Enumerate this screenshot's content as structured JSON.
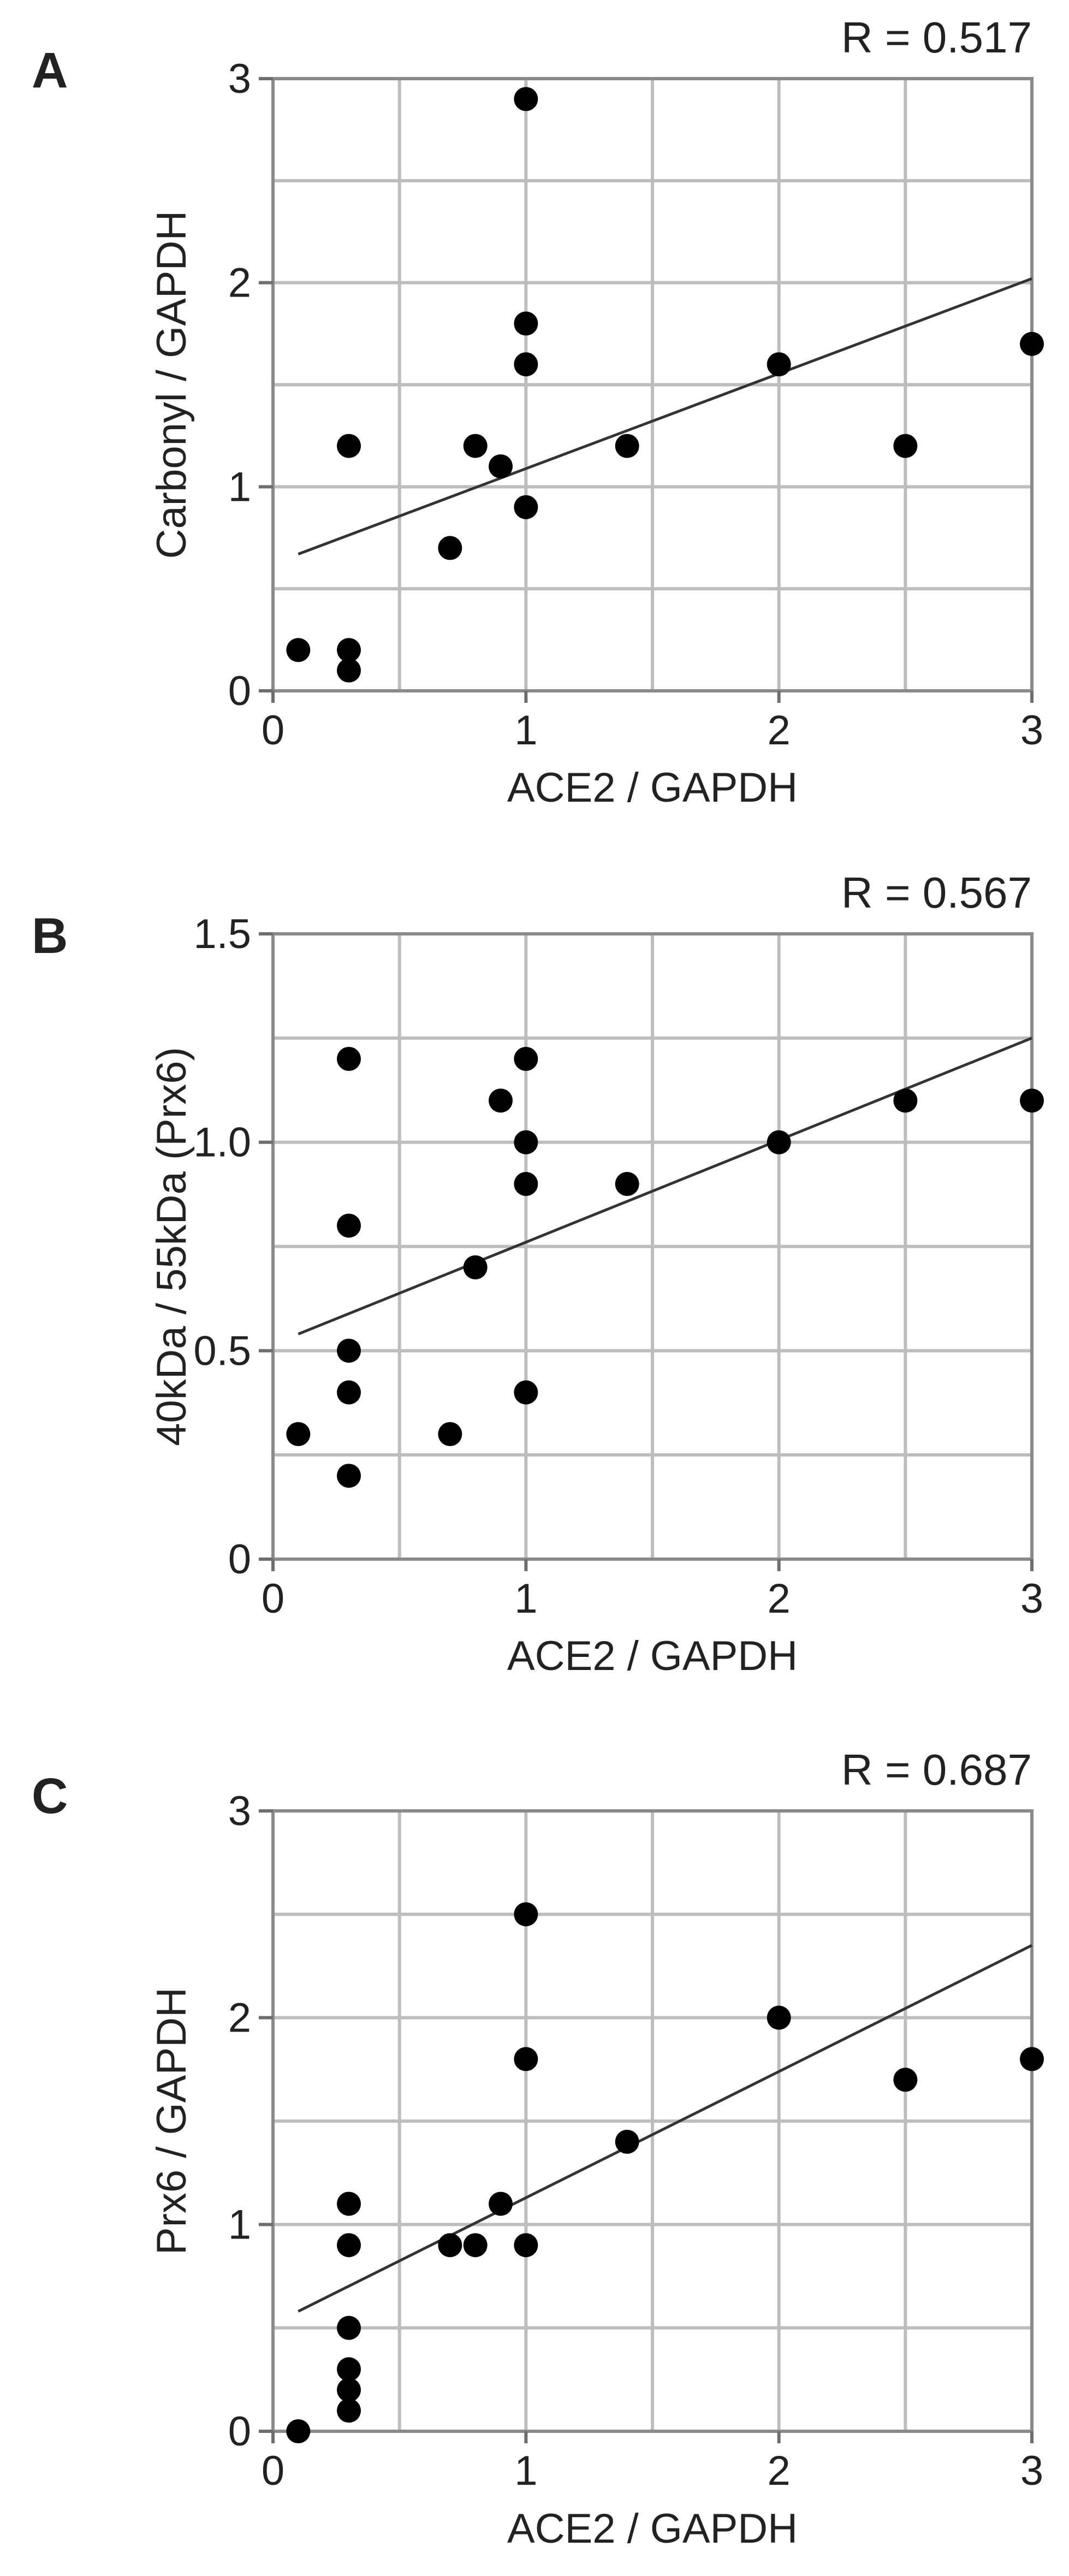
{
  "chart_data": [
    {
      "type": "scatter",
      "panel": "A",
      "annotation": "R = 0.517",
      "xlabel": "ACE2 / GAPDH",
      "ylabel": "Carbonyl / GAPDH",
      "xlim": [
        0,
        3
      ],
      "ylim": [
        0,
        3
      ],
      "x_ticks": [
        0,
        1,
        2,
        3
      ],
      "x_tick_labels": [
        "0",
        "1",
        "2",
        "3"
      ],
      "y_ticks": [
        0,
        1,
        2,
        3
      ],
      "y_tick_labels": [
        "0",
        "1",
        "2",
        "3"
      ],
      "grid": true,
      "points": [
        [
          0.1,
          0.2
        ],
        [
          0.3,
          0.2
        ],
        [
          0.3,
          0.1
        ],
        [
          0.3,
          1.2
        ],
        [
          0.7,
          0.7
        ],
        [
          0.8,
          1.2
        ],
        [
          0.9,
          1.1
        ],
        [
          1.0,
          2.9
        ],
        [
          1.0,
          1.8
        ],
        [
          1.0,
          1.6
        ],
        [
          1.0,
          0.9
        ],
        [
          1.4,
          1.2
        ],
        [
          2.0,
          1.6
        ],
        [
          2.5,
          1.2
        ],
        [
          3.0,
          1.7
        ]
      ],
      "fit": {
        "x": [
          0.1,
          3.0
        ],
        "y": [
          0.67,
          2.02
        ]
      }
    },
    {
      "type": "scatter",
      "panel": "B",
      "annotation": "R = 0.567",
      "xlabel": "ACE2 / GAPDH",
      "ylabel": "40kDa  / 55kDa (Prx6)",
      "xlim": [
        0,
        3
      ],
      "ylim": [
        0,
        1.5
      ],
      "x_ticks": [
        0,
        1,
        2,
        3
      ],
      "x_tick_labels": [
        "0",
        "1",
        "2",
        "3"
      ],
      "y_ticks": [
        0,
        0.5,
        1.0,
        1.5
      ],
      "y_tick_labels": [
        "0",
        "0.5",
        "1.0",
        "1.5"
      ],
      "grid": true,
      "points": [
        [
          0.1,
          0.3
        ],
        [
          0.3,
          1.2
        ],
        [
          0.3,
          0.8
        ],
        [
          0.3,
          0.5
        ],
        [
          0.3,
          0.4
        ],
        [
          0.3,
          0.2
        ],
        [
          0.7,
          0.3
        ],
        [
          0.8,
          0.7
        ],
        [
          0.9,
          1.1
        ],
        [
          1.0,
          1.2
        ],
        [
          1.0,
          1.0
        ],
        [
          1.0,
          0.9
        ],
        [
          1.0,
          0.4
        ],
        [
          1.4,
          0.9
        ],
        [
          2.0,
          1.0
        ],
        [
          2.5,
          1.1
        ],
        [
          3.0,
          1.1
        ]
      ],
      "fit": {
        "x": [
          0.1,
          3.0
        ],
        "y": [
          0.54,
          1.25
        ]
      }
    },
    {
      "type": "scatter",
      "panel": "C",
      "annotation": "R = 0.687",
      "xlabel": "ACE2 / GAPDH",
      "ylabel": "Prx6 / GAPDH",
      "xlim": [
        0,
        3
      ],
      "ylim": [
        0,
        3
      ],
      "x_ticks": [
        0,
        1,
        2,
        3
      ],
      "x_tick_labels": [
        "0",
        "1",
        "2",
        "3"
      ],
      "y_ticks": [
        0,
        1,
        2,
        3
      ],
      "y_tick_labels": [
        "0",
        "1",
        "2",
        "3"
      ],
      "grid": true,
      "points": [
        [
          0.1,
          0.0
        ],
        [
          0.3,
          1.1
        ],
        [
          0.3,
          0.9
        ],
        [
          0.3,
          0.5
        ],
        [
          0.3,
          0.3
        ],
        [
          0.3,
          0.2
        ],
        [
          0.3,
          0.1
        ],
        [
          0.7,
          0.9
        ],
        [
          0.8,
          0.9
        ],
        [
          0.9,
          1.1
        ],
        [
          1.0,
          2.5
        ],
        [
          1.0,
          1.8
        ],
        [
          1.0,
          0.9
        ],
        [
          1.4,
          1.4
        ],
        [
          2.0,
          2.0
        ],
        [
          2.5,
          1.7
        ],
        [
          3.0,
          1.8
        ]
      ],
      "fit": {
        "x": [
          0.1,
          3.0
        ],
        "y": [
          0.58,
          2.35
        ]
      }
    }
  ]
}
